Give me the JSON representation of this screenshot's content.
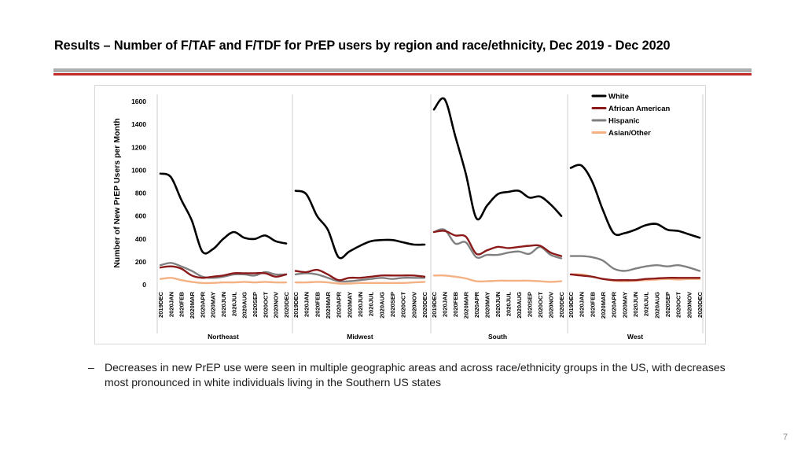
{
  "slide": {
    "title": "Results – Number of F/TAF and F/TDF for PrEP users by region and race/ethnicity, Dec 2019 - Dec 2020",
    "bullet_dash": "–",
    "bullet_text": "Decreases in new PrEP use were seen in multiple geographic areas and across race/ethnicity groups in the US, with decreases most pronounced in white individuals living in the Southern US states",
    "page_number": "7"
  },
  "chart_data": {
    "type": "line",
    "title": "",
    "ylabel": "Number of New PrEP Users per Month",
    "ylim": [
      0,
      1600
    ],
    "yticks": [
      0,
      200,
      400,
      600,
      800,
      1000,
      1200,
      1400,
      1600
    ],
    "legend_position": "top-right",
    "x": [
      "2019DEC",
      "2020JAN",
      "2020FEB",
      "2020MAR",
      "2020APR",
      "2020MAY",
      "2020JUN",
      "2020JUL",
      "2020AUG",
      "2020SEP",
      "2020OCT",
      "2020NOV",
      "2020DEC"
    ],
    "panels": [
      {
        "region": "Northeast",
        "series": [
          {
            "name": "White",
            "color": "#000000",
            "values": [
              970,
              940,
              740,
              560,
              290,
              310,
              400,
              460,
              410,
              400,
              430,
              380,
              360
            ]
          },
          {
            "name": "African American",
            "color": "#8b1a1a",
            "values": [
              150,
              160,
              140,
              80,
              60,
              70,
              80,
              100,
              100,
              100,
              100,
              70,
              90
            ]
          },
          {
            "name": "Hispanic",
            "color": "#808080",
            "values": [
              170,
              190,
              160,
              120,
              70,
              60,
              70,
              90,
              90,
              80,
              110,
              90,
              90
            ]
          },
          {
            "name": "Asian/Other",
            "color": "#f4b183",
            "values": [
              50,
              60,
              40,
              25,
              15,
              15,
              20,
              20,
              25,
              20,
              25,
              20,
              20
            ]
          }
        ]
      },
      {
        "region": "Midwest",
        "series": [
          {
            "name": "White",
            "color": "#000000",
            "values": [
              820,
              790,
              600,
              480,
              240,
              290,
              340,
              380,
              390,
              390,
              370,
              350,
              350
            ]
          },
          {
            "name": "African American",
            "color": "#8b1a1a",
            "values": [
              120,
              110,
              130,
              90,
              40,
              60,
              60,
              70,
              80,
              80,
              80,
              80,
              70
            ]
          },
          {
            "name": "Hispanic",
            "color": "#808080",
            "values": [
              90,
              100,
              90,
              60,
              30,
              30,
              40,
              50,
              60,
              50,
              60,
              60,
              60
            ]
          },
          {
            "name": "Asian/Other",
            "color": "#f4b183",
            "values": [
              20,
              20,
              25,
              20,
              10,
              10,
              15,
              15,
              15,
              15,
              15,
              20,
              25
            ]
          }
        ]
      },
      {
        "region": "South",
        "series": [
          {
            "name": "White",
            "color": "#000000",
            "values": [
              1530,
              1620,
              1300,
              970,
              580,
              690,
              790,
              810,
              820,
              760,
              770,
              700,
              600
            ]
          },
          {
            "name": "African American",
            "color": "#8b1a1a",
            "values": [
              460,
              470,
              430,
              420,
              270,
              300,
              330,
              320,
              330,
              340,
              340,
              280,
              250
            ]
          },
          {
            "name": "Hispanic",
            "color": "#808080",
            "values": [
              460,
              480,
              360,
              370,
              240,
              260,
              260,
              280,
              290,
              270,
              330,
              260,
              230
            ]
          },
          {
            "name": "Asian/Other",
            "color": "#f4b183",
            "values": [
              80,
              80,
              70,
              55,
              30,
              30,
              35,
              35,
              35,
              35,
              30,
              25,
              30
            ]
          }
        ]
      },
      {
        "region": "West",
        "series": [
          {
            "name": "White",
            "color": "#000000",
            "values": [
              1020,
              1040,
              900,
              650,
              450,
              450,
              480,
              520,
              530,
              480,
              470,
              440,
              410
            ]
          },
          {
            "name": "African American",
            "color": "#8b1a1a",
            "values": [
              90,
              80,
              70,
              50,
              40,
              40,
              40,
              50,
              55,
              60,
              60,
              60,
              60
            ]
          },
          {
            "name": "Hispanic",
            "color": "#808080",
            "values": [
              250,
              250,
              240,
              210,
              140,
              120,
              140,
              160,
              170,
              160,
              170,
              150,
              120
            ]
          },
          {
            "name": "Asian/Other",
            "color": "#f4b183",
            "values": [
              90,
              90,
              70,
              50,
              35,
              30,
              35,
              40,
              45,
              50,
              45,
              50,
              50
            ]
          }
        ]
      }
    ]
  }
}
